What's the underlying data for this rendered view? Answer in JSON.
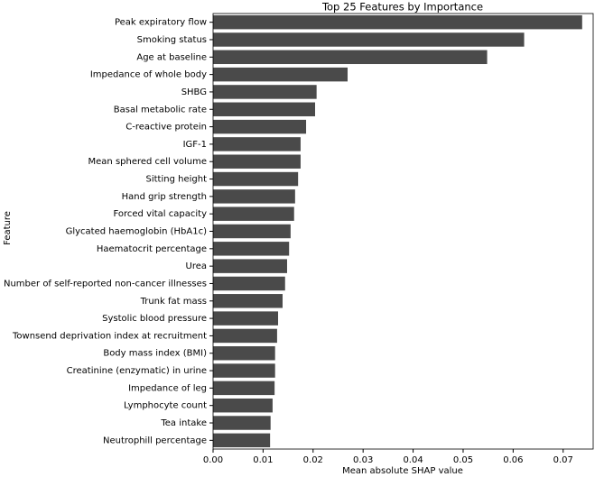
{
  "chart_data": {
    "type": "barh",
    "title": "Top 25 Features by Importance",
    "xlabel": "Mean absolute SHAP value",
    "ylabel": "Feature",
    "categories": [
      "Peak expiratory flow",
      "Smoking status",
      "Age at baseline",
      "Impedance of whole body",
      "SHBG",
      "Basal metabolic rate",
      "C-reactive protein",
      "IGF-1",
      "Mean sphered cell volume",
      "Sitting height",
      "Hand grip strength",
      "Forced vital capacity",
      "Glycated haemoglobin (HbA1c)",
      "Haematocrit percentage",
      "Urea",
      "Number of self-reported non-cancer illnesses",
      "Trunk fat mass",
      "Systolic blood pressure",
      "Townsend deprivation index at recruitment",
      "Body mass index (BMI)",
      "Creatinine (enzymatic) in urine",
      "Impedance of leg",
      "Lymphocyte count",
      "Tea intake",
      "Neutrophill percentage"
    ],
    "values": [
      0.0738,
      0.0622,
      0.0548,
      0.0269,
      0.0207,
      0.0204,
      0.0186,
      0.0175,
      0.0175,
      0.017,
      0.0164,
      0.0162,
      0.0155,
      0.0152,
      0.0148,
      0.0144,
      0.0139,
      0.013,
      0.0128,
      0.0124,
      0.0124,
      0.0123,
      0.0119,
      0.0115,
      0.0114
    ],
    "color": "#4a4a4a",
    "xlim": [
      0,
      0.076
    ],
    "xticks": [
      {
        "value": 0,
        "label": "0.00"
      },
      {
        "value": 0.01,
        "label": "0.01"
      },
      {
        "value": 0.02,
        "label": "0.02"
      },
      {
        "value": 0.03,
        "label": "0.03"
      },
      {
        "value": 0.04,
        "label": "0.04"
      },
      {
        "value": 0.05,
        "label": "0.05"
      },
      {
        "value": 0.06,
        "label": "0.06"
      },
      {
        "value": 0.07,
        "label": "0.07"
      }
    ]
  }
}
